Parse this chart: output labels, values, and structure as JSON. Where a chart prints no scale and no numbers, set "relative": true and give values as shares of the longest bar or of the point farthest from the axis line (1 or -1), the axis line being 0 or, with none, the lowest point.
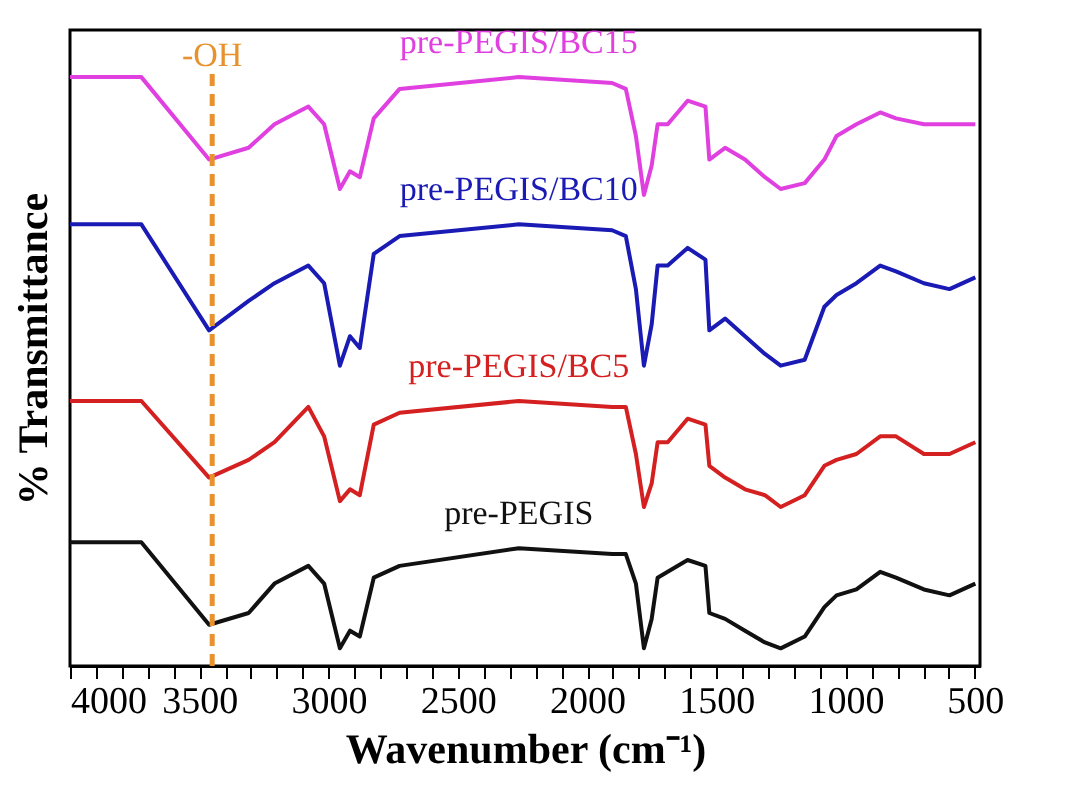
{
  "chart_data": {
    "type": "line",
    "relative": true,
    "xlabel": "Wavenumber (cm⁻¹)",
    "ylabel": "% Transmittance",
    "x": [
      4000,
      3724,
      3462,
      3309,
      3209,
      3078,
      3017,
      2956,
      2917,
      2879,
      2825,
      2725,
      2264,
      1903,
      1850,
      1811,
      1780,
      1750,
      1727,
      1688,
      1611,
      1542,
      1527,
      1466,
      1389,
      1312,
      1251,
      1158,
      1082,
      1035,
      958,
      866,
      805,
      697,
      598,
      498
    ],
    "xlim": [
      4000,
      480
    ],
    "xticks": [
      4000,
      {
        "value": 3900,
        "label": null
      },
      {
        "value": 3800,
        "label": null
      },
      {
        "value": 3700,
        "label": null
      },
      {
        "value": 3600,
        "label": null
      },
      3500,
      {
        "value": 3400,
        "label": null
      },
      {
        "value": 3300,
        "label": null
      },
      {
        "value": 3200,
        "label": null
      },
      {
        "value": 3100,
        "label": null
      },
      3000,
      {
        "value": 2900,
        "label": null
      },
      {
        "value": 2800,
        "label": null
      },
      {
        "value": 2700,
        "label": null
      },
      {
        "value": 2600,
        "label": null
      },
      2500,
      {
        "value": 2400,
        "label": null
      },
      {
        "value": 2300,
        "label": null
      },
      {
        "value": 2200,
        "label": null
      },
      {
        "value": 2100,
        "label": null
      },
      2000,
      {
        "value": 1900,
        "label": null
      },
      {
        "value": 1800,
        "label": null
      },
      {
        "value": 1700,
        "label": null
      },
      {
        "value": 1600,
        "label": null
      },
      1500,
      {
        "value": 1400,
        "label": null
      },
      {
        "value": 1300,
        "label": null
      },
      {
        "value": 1200,
        "label": null
      },
      {
        "value": 1100,
        "label": null
      },
      1000,
      {
        "value": 900,
        "label": null
      },
      {
        "value": 800,
        "label": null
      },
      {
        "value": 700,
        "label": null
      },
      {
        "value": 600,
        "label": null
      },
      500
    ],
    "tick_labels": "x",
    "grid": false,
    "marker": "none",
    "line_style": "solid",
    "series": [
      {
        "name": "pre-PEGIS/BC15",
        "color": "#e040e0",
        "values": [
          1.0,
          1.0,
          0.86,
          0.88,
          0.92,
          0.95,
          0.92,
          0.81,
          0.84,
          0.83,
          0.93,
          0.98,
          1.0,
          0.99,
          0.98,
          0.9,
          0.8,
          0.85,
          0.92,
          0.92,
          0.96,
          0.95,
          0.86,
          0.88,
          0.86,
          0.83,
          0.81,
          0.82,
          0.86,
          0.9,
          0.92,
          0.94,
          0.93,
          0.92,
          0.92,
          0.92
        ]
      },
      {
        "name": "pre-PEGIS/BC10",
        "color": "#1a1ab4",
        "values": [
          0.75,
          0.75,
          0.57,
          0.62,
          0.65,
          0.68,
          0.65,
          0.51,
          0.56,
          0.54,
          0.7,
          0.73,
          0.75,
          0.74,
          0.73,
          0.64,
          0.51,
          0.58,
          0.68,
          0.68,
          0.71,
          0.69,
          0.57,
          0.59,
          0.56,
          0.53,
          0.51,
          0.52,
          0.61,
          0.63,
          0.65,
          0.68,
          0.67,
          0.65,
          0.64,
          0.66
        ]
      },
      {
        "name": "pre-PEGIS/BC5",
        "color": "#d42020",
        "values": [
          0.45,
          0.45,
          0.32,
          0.35,
          0.38,
          0.44,
          0.39,
          0.28,
          0.3,
          0.29,
          0.41,
          0.43,
          0.45,
          0.44,
          0.44,
          0.36,
          0.27,
          0.31,
          0.38,
          0.38,
          0.42,
          0.41,
          0.34,
          0.32,
          0.3,
          0.29,
          0.27,
          0.29,
          0.34,
          0.35,
          0.36,
          0.39,
          0.39,
          0.36,
          0.36,
          0.38
        ]
      },
      {
        "name": "pre-PEGIS",
        "color": "#111111",
        "values": [
          0.21,
          0.21,
          0.07,
          0.09,
          0.14,
          0.17,
          0.14,
          0.03,
          0.06,
          0.05,
          0.15,
          0.17,
          0.2,
          0.19,
          0.19,
          0.14,
          0.03,
          0.08,
          0.15,
          0.16,
          0.18,
          0.17,
          0.09,
          0.08,
          0.06,
          0.04,
          0.03,
          0.05,
          0.1,
          0.12,
          0.13,
          0.16,
          0.15,
          0.13,
          0.12,
          0.14
        ]
      }
    ],
    "ref_lines": [
      {
        "axis": "x",
        "value": 3450,
        "label": "-OH",
        "color": "#e8922e",
        "line_style": "dashed"
      }
    ]
  }
}
